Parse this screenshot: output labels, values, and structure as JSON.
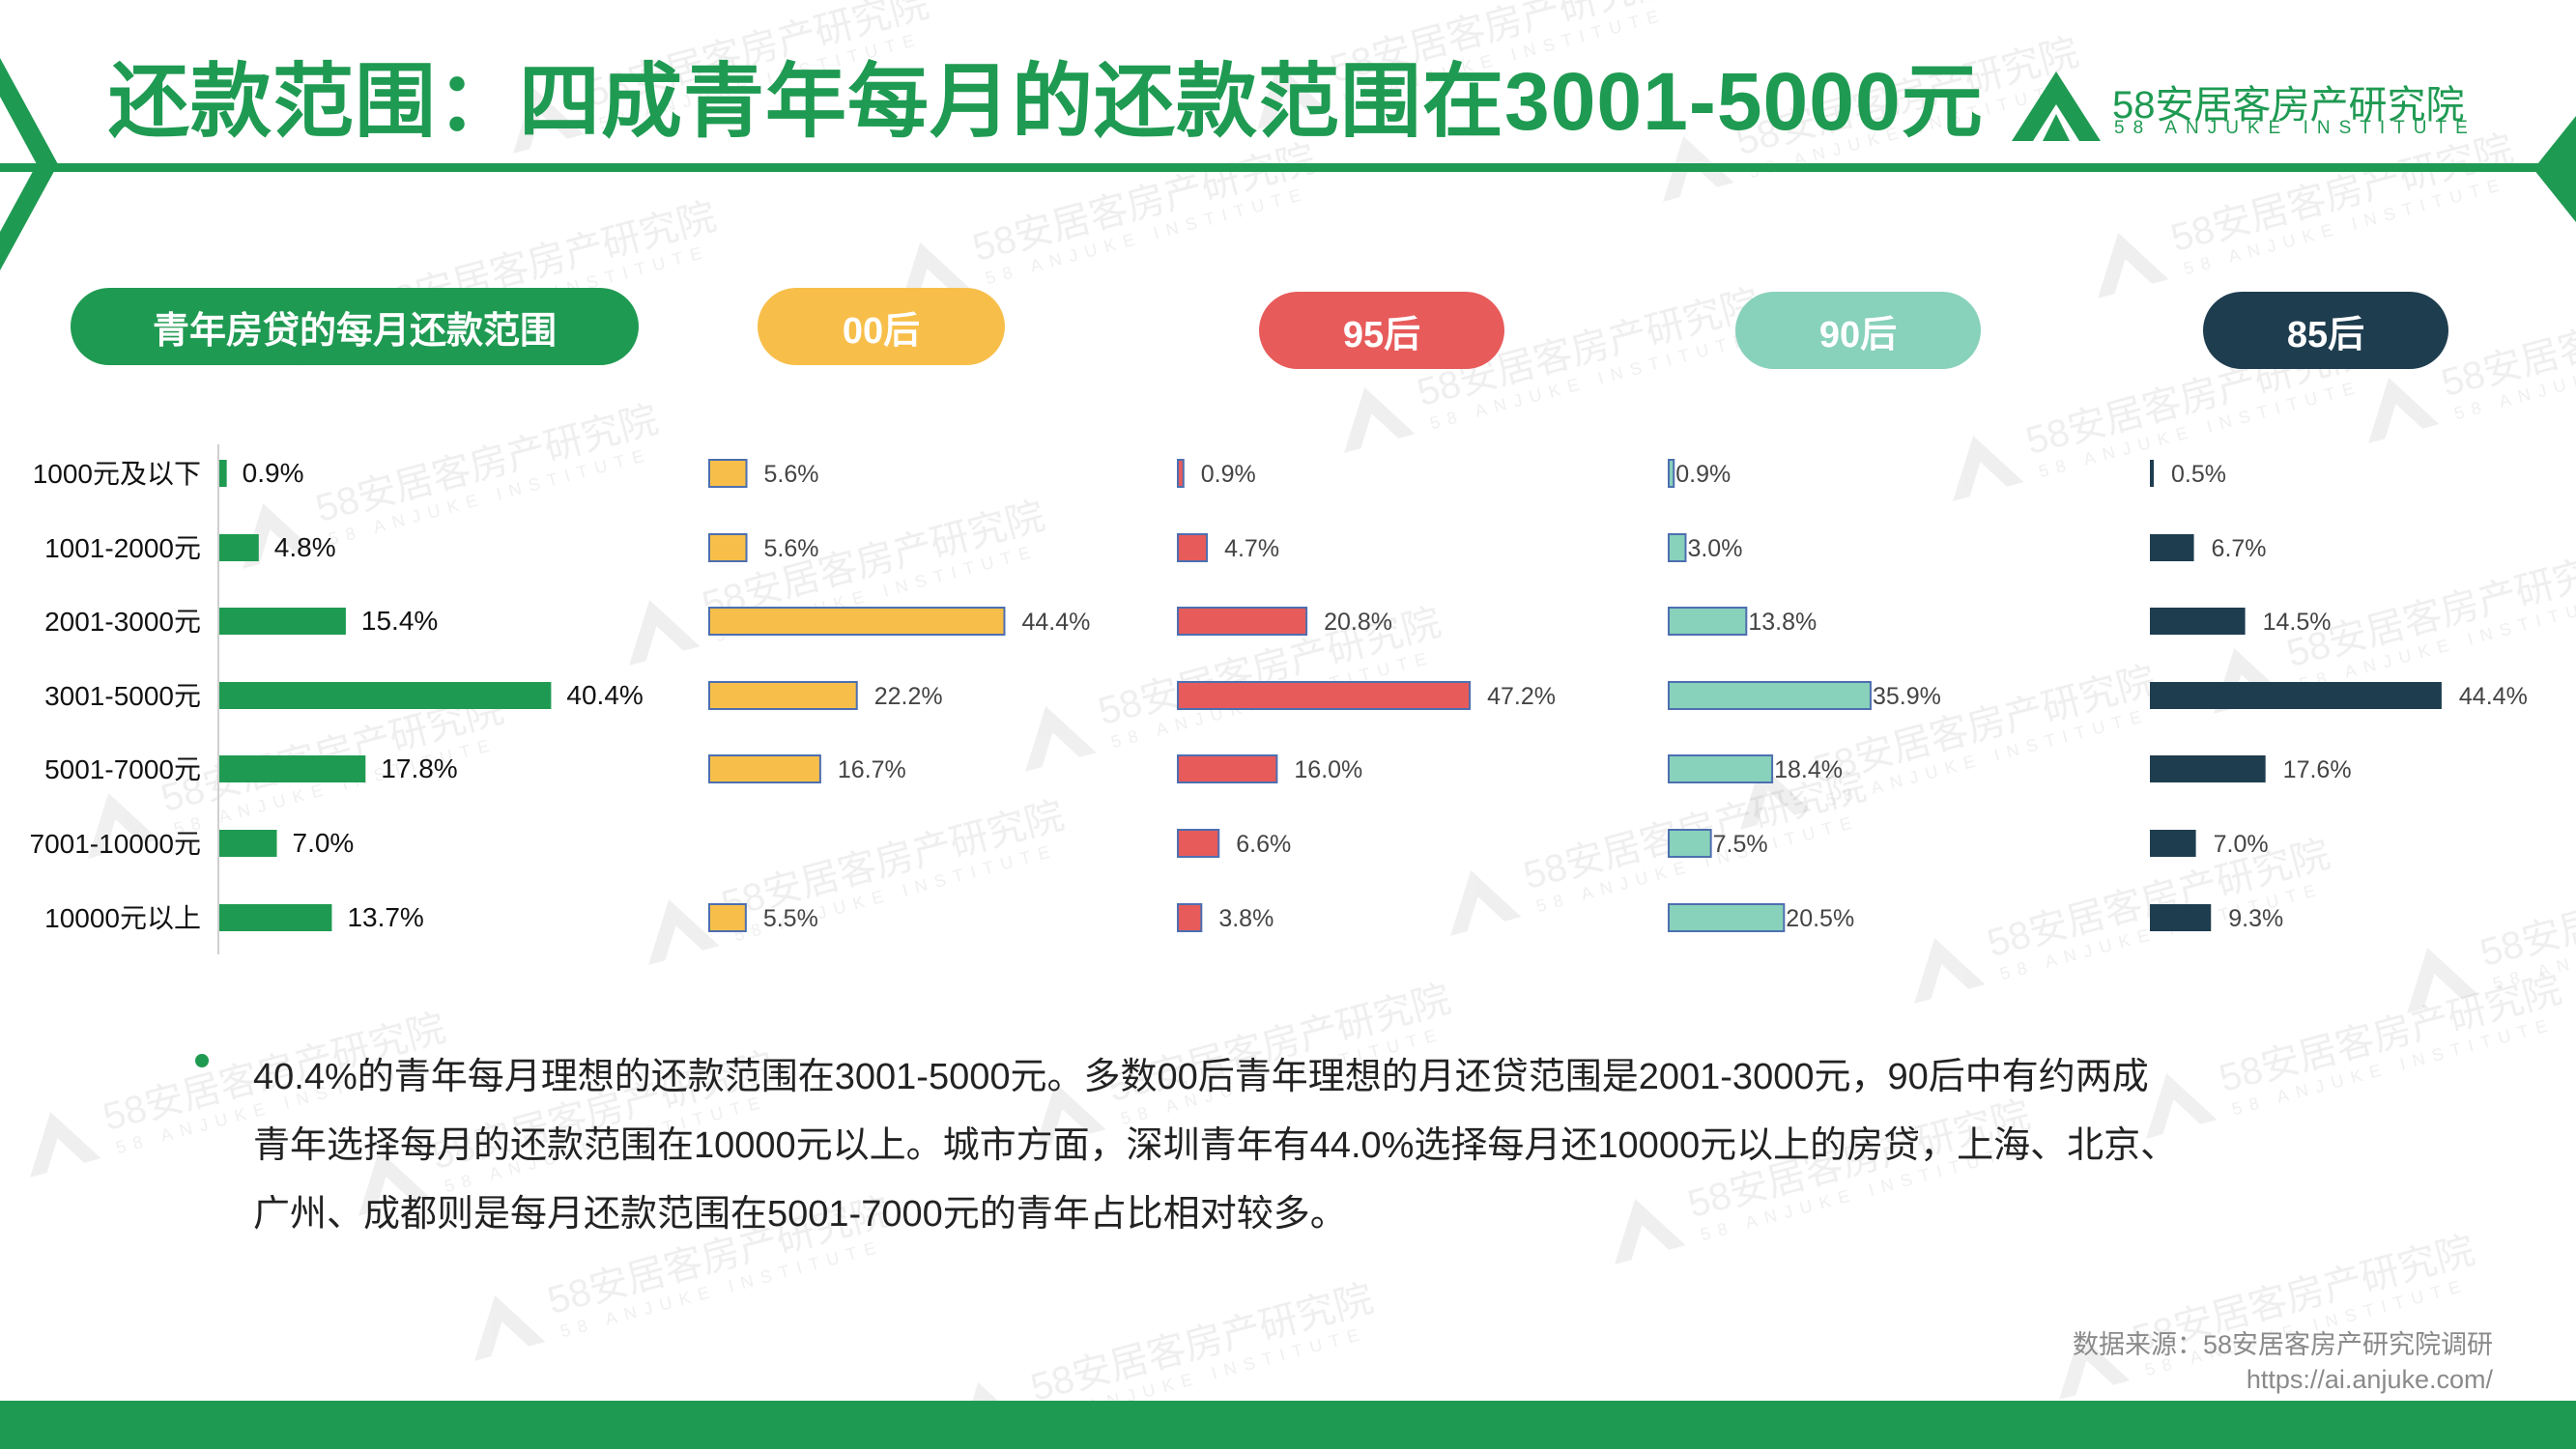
{
  "page": {
    "title": "还款范围：四成青年每月的还款范围在3001-5000元"
  },
  "logo": {
    "name": "58安居客房产研究院",
    "subtitle": "58 ANJUKE INSTITUTE"
  },
  "watermark": {
    "name": "58安居客房产研究院",
    "subtitle": "58 ANJUKE INSTITUTE"
  },
  "colors": {
    "brand_green": "#1f9a52",
    "gen00": "#f7bf4a",
    "gen95": "#e85b5b",
    "gen90": "#88d1bb",
    "gen85": "#1e3d4f"
  },
  "chart_data": {
    "type": "bar",
    "orientation": "horizontal",
    "title": "青年房贷的每月还款范围",
    "categories": [
      "1000元及以下",
      "1001-2000元",
      "2001-3000元",
      "3001-5000元",
      "5001-7000元",
      "7001-10000元",
      "10000元以上"
    ],
    "series": [
      {
        "name": "青年房贷的每月还款范围",
        "color": "#1f9a52",
        "values": [
          0.9,
          4.8,
          15.4,
          40.4,
          17.8,
          7.0,
          13.7
        ],
        "labels": [
          "0.9%",
          "4.8%",
          "15.4%",
          "40.4%",
          "17.8%",
          "7.0%",
          "13.7%"
        ]
      },
      {
        "name": "00后",
        "color": "#f7bf4a",
        "values": [
          5.6,
          5.6,
          44.4,
          22.2,
          16.7,
          null,
          5.5
        ],
        "labels": [
          "5.6%",
          "5.6%",
          "44.4%",
          "22.2%",
          "16.7%",
          "",
          "5.5%"
        ]
      },
      {
        "name": "95后",
        "color": "#e85b5b",
        "values": [
          0.9,
          4.7,
          20.8,
          47.2,
          16.0,
          6.6,
          3.8
        ],
        "labels": [
          "0.9%",
          "4.7%",
          "20.8%",
          "47.2%",
          "16.0%",
          "6.6%",
          "3.8%"
        ]
      },
      {
        "name": "90后",
        "color": "#88d1bb",
        "values": [
          0.9,
          3.0,
          13.8,
          35.9,
          18.4,
          7.5,
          20.5
        ],
        "labels": [
          "0.9%",
          "3.0%",
          "13.8%",
          "35.9%",
          "18.4%",
          "7.5%",
          "20.5%"
        ]
      },
      {
        "name": "85后",
        "color": "#1e3d4f",
        "values": [
          0.5,
          6.7,
          14.5,
          44.4,
          17.6,
          7.0,
          9.3
        ],
        "labels": [
          "0.5%",
          "6.7%",
          "14.5%",
          "44.4%",
          "17.6%",
          "7.0%",
          "9.3%"
        ]
      }
    ]
  },
  "summary": {
    "line1": "40.4%的青年每月理想的还款范围在3001-5000元。多数00后青年理想的月还贷范围是2001-3000元，90后中有约两成",
    "line2": "青年选择每月的还款范围在10000元以上。城市方面，深圳青年有44.0%选择每月还10000元以上的房贷，上海、北京、",
    "line3": "广州、成都则是每月还款范围在5001-7000元的青年占比相对较多。"
  },
  "source": {
    "text": "数据来源：58安居客房产研究院调研",
    "url": "https://ai.anjuke.com/"
  }
}
